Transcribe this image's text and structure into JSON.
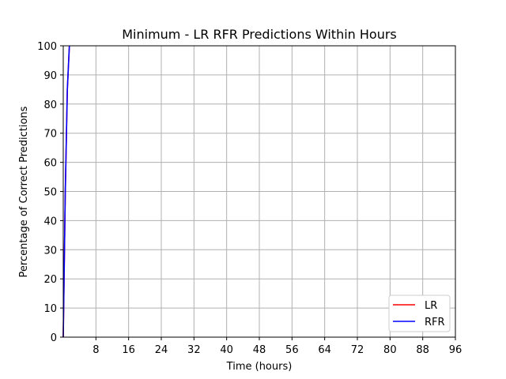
{
  "chart_data": {
    "type": "line",
    "title": "Minimum - LR RFR Predictions Within Hours",
    "xlabel": "Time (hours)",
    "ylabel": "Percentage of Correct Predictions",
    "xlim": [
      0,
      96
    ],
    "ylim": [
      0,
      100
    ],
    "xticks": [
      8,
      16,
      24,
      32,
      40,
      48,
      56,
      64,
      72,
      80,
      88,
      96
    ],
    "yticks": [
      0,
      10,
      20,
      30,
      40,
      50,
      60,
      70,
      80,
      90,
      100
    ],
    "grid": true,
    "legend_position": "bottom-right",
    "series": [
      {
        "name": "LR",
        "color": "#ff0000",
        "x": [
          0,
          0.5,
          1,
          1.5
        ],
        "y": [
          0,
          50,
          85,
          100
        ]
      },
      {
        "name": "RFR",
        "color": "#0000ff",
        "x": [
          0,
          0.5,
          1,
          1.5
        ],
        "y": [
          0,
          50,
          85,
          100
        ]
      }
    ]
  }
}
